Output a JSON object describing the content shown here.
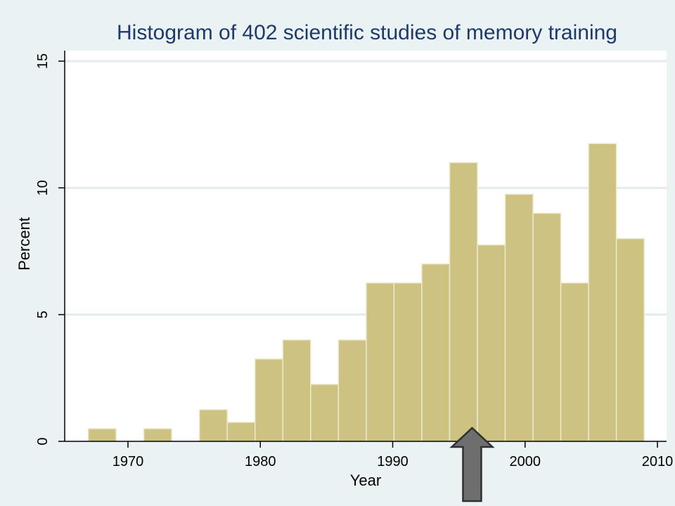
{
  "chart_data": {
    "type": "bar",
    "title": "Histogram of 402 scientific studies of memory training",
    "xlabel": "Year",
    "ylabel": "Percent",
    "xlim": [
      1965,
      2010
    ],
    "ylim": [
      0,
      15.5
    ],
    "xticks": [
      1970,
      1980,
      1990,
      2000,
      2010
    ],
    "yticks": [
      0,
      5,
      10,
      15
    ],
    "grid": true,
    "bin_width": 2.1,
    "bins": [
      {
        "start": 1967.0,
        "value": 0.5
      },
      {
        "start": 1969.1,
        "value": 0
      },
      {
        "start": 1971.2,
        "value": 0.5
      },
      {
        "start": 1973.3,
        "value": 0
      },
      {
        "start": 1975.4,
        "value": 1.25
      },
      {
        "start": 1977.5,
        "value": 0.75
      },
      {
        "start": 1979.6,
        "value": 3.25
      },
      {
        "start": 1981.7,
        "value": 4.0
      },
      {
        "start": 1983.8,
        "value": 2.25
      },
      {
        "start": 1985.9,
        "value": 4.0
      },
      {
        "start": 1988.0,
        "value": 6.25
      },
      {
        "start": 1990.1,
        "value": 6.25
      },
      {
        "start": 1992.2,
        "value": 7.0
      },
      {
        "start": 1994.3,
        "value": 11.0
      },
      {
        "start": 1996.4,
        "value": 7.75
      },
      {
        "start": 1998.5,
        "value": 9.75
      },
      {
        "start": 2000.6,
        "value": 9.0
      },
      {
        "start": 2002.7,
        "value": 6.25
      },
      {
        "start": 2004.8,
        "value": 11.75
      },
      {
        "start": 2006.9,
        "value": 8.0
      }
    ],
    "annotation": {
      "type": "arrow",
      "x": 1996,
      "direction": "up"
    },
    "colors": {
      "bar_fill": "#cdc281",
      "bar_stroke": "#ece9cf",
      "title": "#1f3a68",
      "plot_bg": "#ffffff",
      "page_bg": "#eaf2f3",
      "grid": "#e3ebec",
      "arrow_fill": "#6e6e6e",
      "arrow_stroke": "#303030"
    }
  }
}
